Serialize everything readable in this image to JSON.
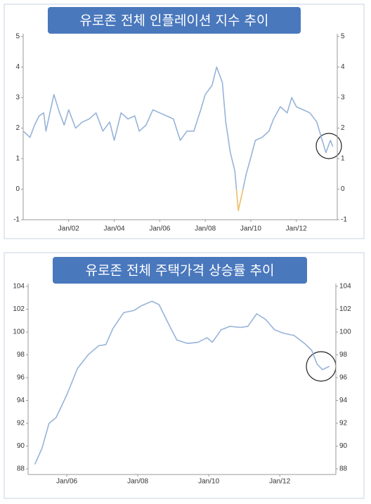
{
  "chart_data": [
    {
      "type": "line",
      "title": "유로존 전체 인플레이션 지수 추이",
      "x": [
        2000.0,
        2000.3,
        2000.5,
        2000.7,
        2000.9,
        2001.0,
        2001.35,
        2001.6,
        2001.8,
        2002.0,
        2002.3,
        2002.6,
        2002.9,
        2003.2,
        2003.5,
        2003.8,
        2004.0,
        2004.3,
        2004.6,
        2004.9,
        2005.1,
        2005.4,
        2005.7,
        2006.0,
        2006.3,
        2006.6,
        2006.9,
        2007.2,
        2007.5,
        2007.8,
        2008.0,
        2008.3,
        2008.5,
        2008.75,
        2008.9,
        2009.1,
        2009.3,
        2009.45,
        2009.6,
        2009.8,
        2009.95,
        2010.2,
        2010.5,
        2010.8,
        2011.0,
        2011.3,
        2011.6,
        2011.8,
        2012.0,
        2012.3,
        2012.6,
        2012.9,
        2013.1,
        2013.3,
        2013.5,
        2013.6
      ],
      "series": [
        {
          "color": "#97b3d9",
          "values": [
            1.9,
            1.7,
            2.1,
            2.4,
            2.5,
            1.9,
            3.1,
            2.5,
            2.1,
            2.6,
            2.0,
            2.2,
            2.3,
            2.5,
            1.9,
            2.2,
            1.6,
            2.5,
            2.3,
            2.4,
            1.9,
            2.1,
            2.6,
            2.5,
            2.4,
            2.3,
            1.6,
            1.9,
            1.9,
            2.6,
            3.1,
            3.4,
            4.0,
            3.5,
            2.2,
            1.2,
            0.6,
            -0.7,
            -0.2,
            0.5,
            0.9,
            1.6,
            1.7,
            1.9,
            2.3,
            2.7,
            2.5,
            3.0,
            2.7,
            2.6,
            2.5,
            2.2,
            1.7,
            1.2,
            1.6,
            1.4
          ]
        }
      ],
      "negative_color": "#f3c46e",
      "xlim": [
        2000,
        2013.8
      ],
      "xticks": [
        {
          "value": 2002,
          "label": "Jan/02"
        },
        {
          "value": 2004,
          "label": "Jan/04"
        },
        {
          "value": 2006,
          "label": "Jan/06"
        },
        {
          "value": 2008,
          "label": "Jan/08"
        },
        {
          "value": 2010,
          "label": "Jan/10"
        },
        {
          "value": 2012,
          "label": "Jan/12"
        }
      ],
      "ylim": [
        -1,
        5
      ],
      "yticks": [
        -1,
        0,
        1,
        2,
        3,
        4,
        5
      ]
    },
    {
      "type": "line",
      "title": "유로존 전체 주택가격 상승률 추이",
      "x": [
        2005.1,
        2005.3,
        2005.5,
        2005.7,
        2006.0,
        2006.3,
        2006.6,
        2006.9,
        2007.1,
        2007.3,
        2007.6,
        2007.9,
        2008.1,
        2008.4,
        2008.6,
        2008.9,
        2009.1,
        2009.4,
        2009.7,
        2009.95,
        2010.1,
        2010.35,
        2010.6,
        2010.9,
        2011.1,
        2011.35,
        2011.6,
        2011.85,
        2012.1,
        2012.4,
        2012.7,
        2012.9,
        2013.05,
        2013.2,
        2013.4
      ],
      "series": [
        {
          "color": "#97b3d9",
          "values": [
            88.4,
            89.8,
            92.0,
            92.5,
            94.5,
            96.8,
            98.0,
            98.8,
            98.9,
            100.3,
            101.7,
            101.9,
            102.3,
            102.7,
            102.4,
            100.5,
            99.3,
            99.0,
            99.1,
            99.5,
            99.1,
            100.2,
            100.5,
            100.4,
            100.5,
            101.6,
            101.1,
            100.2,
            99.9,
            99.7,
            99.0,
            98.4,
            97.2,
            96.7,
            97.0
          ]
        }
      ],
      "xlim": [
        2004.91,
        2013.58
      ],
      "xticks": [
        {
          "value": 2006,
          "label": "Jan/06"
        },
        {
          "value": 2008,
          "label": "Jan/08"
        },
        {
          "value": 2010,
          "label": "Jan/10"
        },
        {
          "value": 2012,
          "label": "Jan/12"
        }
      ],
      "ylim": [
        88,
        104
      ],
      "yticks": [
        88,
        90,
        92,
        94,
        96,
        98,
        100,
        102,
        104
      ]
    }
  ]
}
